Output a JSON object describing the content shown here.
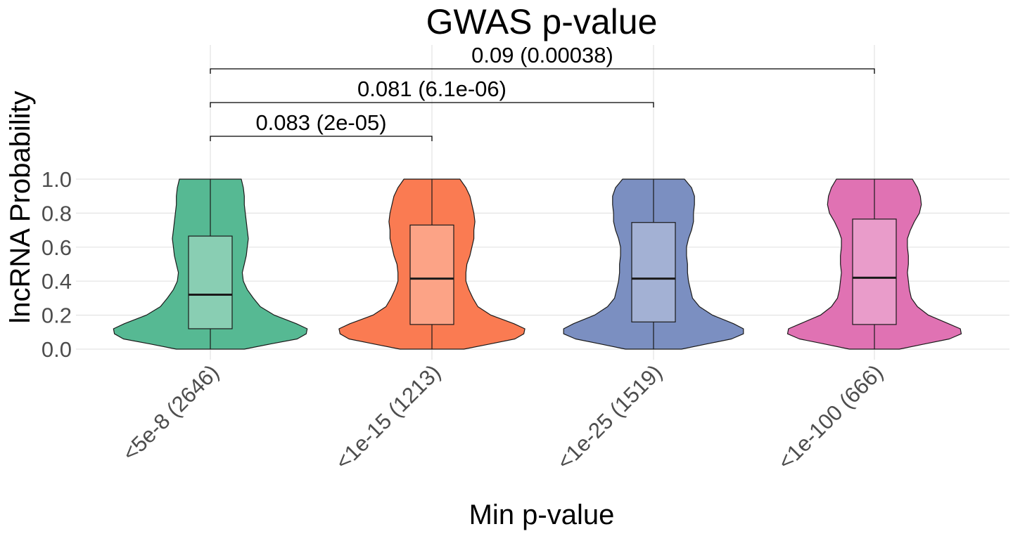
{
  "chart_data": {
    "type": "violin",
    "title": "GWAS p-value",
    "xlabel": "Min p-value",
    "ylabel": "lncRNA Probability",
    "ylim": [
      0,
      1
    ],
    "yticks": [
      "0.0",
      "0.2",
      "0.4",
      "0.6",
      "0.8",
      "1.0"
    ],
    "grid": true,
    "legend": "none",
    "categories": [
      "<5e-8 (2646)",
      "<1e-15 (1213)",
      "<1e-25 (1519)",
      "<1e-100 (666)"
    ],
    "colors": [
      "#56b993",
      "#fa7b52",
      "#7b8fc1",
      "#e072b3"
    ],
    "boxes": [
      {
        "q1": 0.12,
        "median": 0.32,
        "q3": 0.665
      },
      {
        "q1": 0.145,
        "median": 0.415,
        "q3": 0.73
      },
      {
        "q1": 0.16,
        "median": 0.415,
        "q3": 0.745
      },
      {
        "q1": 0.145,
        "median": 0.42,
        "q3": 0.765
      }
    ],
    "violin_profiles": [
      [
        [
          0,
          0.34
        ],
        [
          0.03,
          0.6
        ],
        [
          0.06,
          0.87
        ],
        [
          0.09,
          0.96
        ],
        [
          0.12,
          0.97
        ],
        [
          0.15,
          0.86
        ],
        [
          0.2,
          0.64
        ],
        [
          0.25,
          0.5
        ],
        [
          0.3,
          0.43
        ],
        [
          0.35,
          0.37
        ],
        [
          0.4,
          0.33
        ],
        [
          0.45,
          0.32
        ],
        [
          0.5,
          0.34
        ],
        [
          0.55,
          0.36
        ],
        [
          0.6,
          0.37
        ],
        [
          0.65,
          0.38
        ],
        [
          0.7,
          0.37
        ],
        [
          0.75,
          0.36
        ],
        [
          0.8,
          0.35
        ],
        [
          0.85,
          0.34
        ],
        [
          0.9,
          0.34
        ],
        [
          0.95,
          0.33
        ],
        [
          1,
          0.31
        ]
      ],
      [
        [
          0,
          0.32
        ],
        [
          0.03,
          0.58
        ],
        [
          0.06,
          0.83
        ],
        [
          0.09,
          0.92
        ],
        [
          0.12,
          0.93
        ],
        [
          0.15,
          0.82
        ],
        [
          0.2,
          0.59
        ],
        [
          0.25,
          0.46
        ],
        [
          0.3,
          0.41
        ],
        [
          0.35,
          0.37
        ],
        [
          0.4,
          0.34
        ],
        [
          0.45,
          0.34
        ],
        [
          0.5,
          0.35
        ],
        [
          0.55,
          0.38
        ],
        [
          0.6,
          0.4
        ],
        [
          0.65,
          0.42
        ],
        [
          0.7,
          0.42
        ],
        [
          0.75,
          0.43
        ],
        [
          0.8,
          0.42
        ],
        [
          0.85,
          0.4
        ],
        [
          0.9,
          0.38
        ],
        [
          0.95,
          0.34
        ],
        [
          1,
          0.28
        ]
      ],
      [
        [
          0,
          0.28
        ],
        [
          0.03,
          0.53
        ],
        [
          0.06,
          0.78
        ],
        [
          0.09,
          0.9
        ],
        [
          0.12,
          0.9
        ],
        [
          0.15,
          0.8
        ],
        [
          0.2,
          0.59
        ],
        [
          0.25,
          0.46
        ],
        [
          0.3,
          0.39
        ],
        [
          0.35,
          0.37
        ],
        [
          0.4,
          0.35
        ],
        [
          0.45,
          0.34
        ],
        [
          0.5,
          0.34
        ],
        [
          0.55,
          0.33
        ],
        [
          0.6,
          0.33
        ],
        [
          0.65,
          0.35
        ],
        [
          0.7,
          0.38
        ],
        [
          0.75,
          0.4
        ],
        [
          0.8,
          0.4
        ],
        [
          0.85,
          0.41
        ],
        [
          0.9,
          0.41
        ],
        [
          0.95,
          0.38
        ],
        [
          1,
          0.31
        ]
      ],
      [
        [
          0,
          0.25
        ],
        [
          0.03,
          0.5
        ],
        [
          0.06,
          0.75
        ],
        [
          0.09,
          0.87
        ],
        [
          0.12,
          0.86
        ],
        [
          0.15,
          0.74
        ],
        [
          0.2,
          0.54
        ],
        [
          0.25,
          0.43
        ],
        [
          0.3,
          0.37
        ],
        [
          0.35,
          0.35
        ],
        [
          0.4,
          0.34
        ],
        [
          0.45,
          0.33
        ],
        [
          0.5,
          0.34
        ],
        [
          0.55,
          0.34
        ],
        [
          0.6,
          0.33
        ],
        [
          0.65,
          0.33
        ],
        [
          0.7,
          0.36
        ],
        [
          0.75,
          0.4
        ],
        [
          0.8,
          0.45
        ],
        [
          0.85,
          0.47
        ],
        [
          0.9,
          0.46
        ],
        [
          0.95,
          0.43
        ],
        [
          1,
          0.38
        ]
      ]
    ],
    "comparisons": [
      {
        "from": 0,
        "to": 1,
        "label": "0.083 (2e-05)"
      },
      {
        "from": 0,
        "to": 2,
        "label": "0.081 (6.1e-06)"
      },
      {
        "from": 0,
        "to": 3,
        "label": "0.09 (0.00038)"
      }
    ]
  }
}
